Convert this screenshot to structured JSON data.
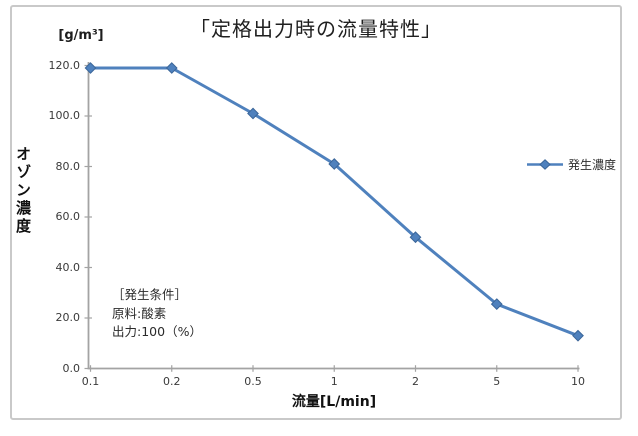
{
  "chart": {
    "title": "「定格出力時の流量特性」",
    "y_unit_label": "[g/m³]",
    "y_axis_title": "オゾン濃度",
    "x_axis_title": "流量[L/min]",
    "legend": {
      "label": "発生濃度"
    },
    "annotation": {
      "lines": [
        "［発生条件］",
        "原料:酸素",
        "出力:100（%）"
      ]
    },
    "colors": {
      "series": "#4F81BD",
      "series_dark": "#3A6598",
      "axis": "#A3A3A3",
      "tick_text": "#3a3a3a",
      "border": "#C9C9C9"
    }
  },
  "chart_data": {
    "type": "line",
    "title": "「定格出力時の流量特性」",
    "categories": [
      "0.1",
      "0.2",
      "0.5",
      "1",
      "2",
      "5",
      "10"
    ],
    "series": [
      {
        "name": "発生濃度",
        "values": [
          119,
          119,
          101,
          81,
          52,
          25.5,
          13
        ]
      }
    ],
    "xlabel": "流量[L/min]",
    "ylabel": "オゾン濃度 [g/m³]",
    "ylim": [
      0,
      120
    ],
    "y_ticks": [
      0,
      20,
      40,
      60,
      80,
      100,
      120
    ],
    "y_tick_labels": [
      "0.0",
      "20.0",
      "40.0",
      "60.0",
      "80.0",
      "100.0",
      "120.0"
    ],
    "grid": false,
    "legend_position": "right-middle",
    "marker": "diamond",
    "annotation_text": "［発生条件］ 原料:酸素 出力:100（%）"
  }
}
